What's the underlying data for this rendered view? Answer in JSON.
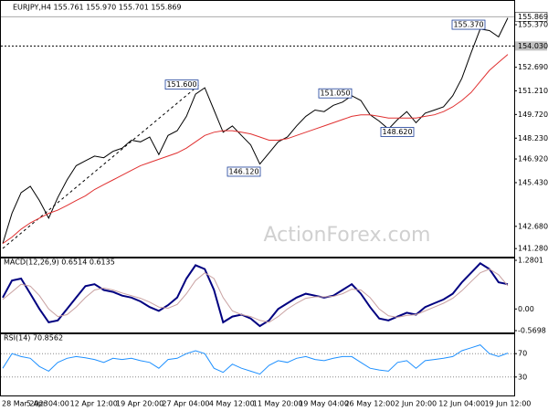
{
  "header": "EURJPY,H4 155.761 155.970 155.701 155.869",
  "watermark": "ActionForex.com",
  "chart_data": [
    {
      "type": "line",
      "ylim": [
        140.83,
        156.35
      ],
      "yticks": [
        {
          "value": 155.37,
          "label": "155.370"
        },
        {
          "value": 152.69,
          "label": "152.690"
        },
        {
          "value": 151.21,
          "label": "151.210"
        },
        {
          "value": 149.72,
          "label": "149.720"
        },
        {
          "value": 148.23,
          "label": "148.230"
        },
        {
          "value": 146.92,
          "label": "146.920"
        },
        {
          "value": 145.43,
          "label": "145.430"
        },
        {
          "value": 142.68,
          "label": "142.680"
        },
        {
          "value": 141.28,
          "label": "141.280"
        }
      ],
      "current_price": 155.869,
      "reference_line": {
        "value": 154.03,
        "label": "154.030"
      },
      "annotations": [
        {
          "value": 151.6,
          "label": "151.600"
        },
        {
          "value": 151.05,
          "label": "151.050"
        },
        {
          "value": 155.37,
          "label": "155.370"
        },
        {
          "value": 148.62,
          "label": "148.620"
        },
        {
          "value": 146.12,
          "label": "146.120"
        }
      ],
      "series": [
        {
          "color": "#000000",
          "values": [
            141.6,
            143.5,
            144.8,
            145.2,
            144.3,
            143.2,
            144.5,
            145.6,
            146.5,
            146.8,
            147.1,
            147.0,
            147.4,
            147.6,
            148.1,
            148.0,
            148.3,
            147.2,
            148.4,
            148.7,
            149.6,
            151.0,
            151.4,
            150.0,
            148.6,
            149.0,
            148.4,
            147.8,
            146.6,
            147.3,
            148.0,
            148.3,
            149.0,
            149.6,
            150.0,
            149.9,
            150.3,
            150.5,
            150.9,
            150.6,
            149.7,
            149.3,
            148.8,
            149.4,
            149.9,
            149.2,
            149.8,
            150.0,
            150.2,
            150.9,
            152.0,
            153.6,
            155.1,
            155.0,
            154.6,
            155.8
          ]
        },
        {
          "color": "#e03030",
          "values": [
            141.6,
            142.0,
            142.5,
            142.9,
            143.2,
            143.5,
            143.7,
            144.0,
            144.3,
            144.6,
            145.0,
            145.3,
            145.6,
            145.9,
            146.2,
            146.5,
            146.7,
            146.9,
            147.1,
            147.3,
            147.6,
            148.0,
            148.4,
            148.6,
            148.7,
            148.7,
            148.6,
            148.5,
            148.3,
            148.1,
            148.1,
            148.2,
            148.4,
            148.6,
            148.8,
            149.0,
            149.2,
            149.4,
            149.6,
            149.7,
            149.7,
            149.6,
            149.5,
            149.5,
            149.5,
            149.5,
            149.6,
            149.7,
            149.9,
            150.2,
            150.6,
            151.1,
            151.8,
            152.5,
            153.0,
            153.5
          ]
        }
      ]
    },
    {
      "type": "line",
      "title": "MACD(12,26,9) 0.6514 0.6135",
      "ylim": [
        -0.5698,
        1.2801
      ],
      "yticks": [
        1.2801,
        {
          "value": 0,
          "label": "0.00"
        },
        -0.5698
      ],
      "series": [
        {
          "color": "#000080",
          "values": [
            0.3,
            0.75,
            0.8,
            0.4,
            0.0,
            -0.35,
            -0.3,
            0.0,
            0.3,
            0.6,
            0.65,
            0.5,
            0.45,
            0.35,
            0.3,
            0.2,
            0.05,
            -0.05,
            0.1,
            0.3,
            0.8,
            1.15,
            1.05,
            0.5,
            -0.35,
            -0.2,
            -0.15,
            -0.25,
            -0.45,
            -0.3,
            0.0,
            0.15,
            0.3,
            0.4,
            0.35,
            0.3,
            0.35,
            0.5,
            0.65,
            0.4,
            0.05,
            -0.25,
            -0.3,
            -0.2,
            -0.1,
            -0.15,
            0.05,
            0.15,
            0.25,
            0.4,
            0.7,
            0.95,
            1.2,
            1.05,
            0.7,
            0.65
          ]
        },
        {
          "color": "#c8a0a0",
          "values": [
            0.25,
            0.45,
            0.65,
            0.6,
            0.35,
            0.0,
            -0.2,
            -0.15,
            0.05,
            0.3,
            0.5,
            0.55,
            0.5,
            0.42,
            0.35,
            0.28,
            0.18,
            0.05,
            0.02,
            0.12,
            0.4,
            0.75,
            0.95,
            0.8,
            0.3,
            -0.05,
            -0.15,
            -0.2,
            -0.3,
            -0.35,
            -0.2,
            0.0,
            0.15,
            0.28,
            0.32,
            0.32,
            0.33,
            0.4,
            0.52,
            0.5,
            0.3,
            0.0,
            -0.18,
            -0.22,
            -0.17,
            -0.15,
            -0.05,
            0.05,
            0.15,
            0.28,
            0.48,
            0.72,
            0.95,
            1.05,
            0.9,
            0.61
          ]
        }
      ]
    },
    {
      "type": "line",
      "title": "RSI(14) 70.8562",
      "ylim": [
        0,
        100
      ],
      "yticks": [
        70,
        30
      ],
      "grid": true,
      "series": [
        {
          "color": "#1e90ff",
          "values": [
            45,
            70,
            65,
            62,
            48,
            40,
            55,
            62,
            65,
            63,
            60,
            55,
            62,
            60,
            62,
            58,
            55,
            45,
            60,
            62,
            70,
            75,
            70,
            45,
            38,
            52,
            45,
            40,
            35,
            50,
            58,
            55,
            62,
            65,
            60,
            58,
            62,
            65,
            65,
            55,
            45,
            42,
            40,
            55,
            58,
            45,
            58,
            60,
            62,
            65,
            75,
            80,
            85,
            70,
            65,
            71
          ]
        }
      ],
      "xtick_labels": [
        "28 Mar 2023",
        "5 Apr 04:00",
        "12 Apr 12:00",
        "19 Apr 20:00",
        "27 Apr 04:00",
        "4 May 12:00",
        "11 May 20:00",
        "19 May 04:00",
        "26 May 12:00",
        "2 Jun 20:00",
        "12 Jun 04:00",
        "19 Jun 12:00"
      ]
    }
  ]
}
